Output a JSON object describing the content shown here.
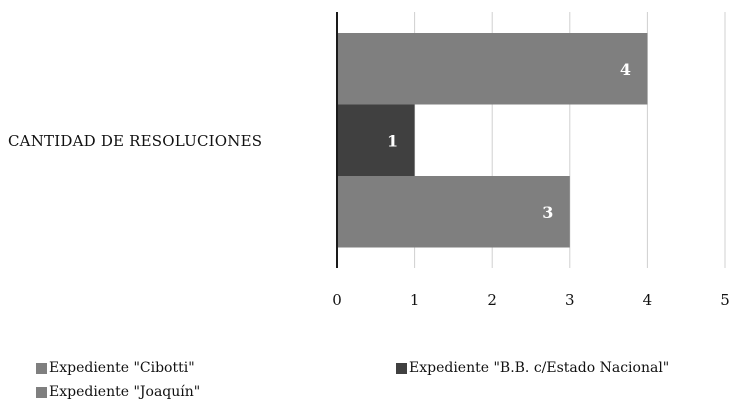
{
  "chart_data": {
    "type": "bar",
    "orientation": "horizontal",
    "categories": [
      "CANTIDAD DE RESOLUCIONES"
    ],
    "series": [
      {
        "name": "Expediente \"Cibotti\"",
        "values": [
          4
        ],
        "color": "#7f7f7f"
      },
      {
        "name": "Expediente \"B.B. c/Estado Nacional\"",
        "values": [
          1
        ],
        "color": "#404040"
      },
      {
        "name": "Expediente \"Joaquín\"",
        "values": [
          3
        ],
        "color": "#7f7f7f"
      }
    ],
    "xlim": [
      0,
      5
    ],
    "xticks": [
      "0",
      "1",
      "2",
      "3",
      "4",
      "5"
    ],
    "grid": true,
    "legend_position": "bottom",
    "data_labels": true
  }
}
